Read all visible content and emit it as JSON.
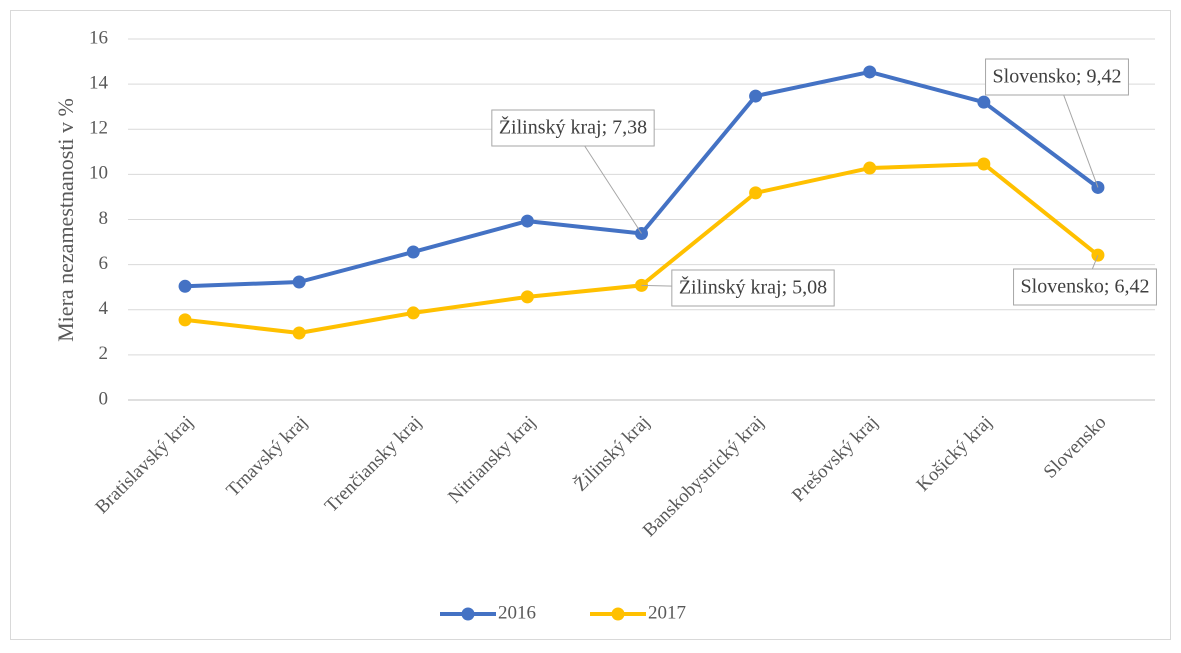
{
  "chart_data": {
    "type": "line",
    "y_axis_label": "Miera nezamestnanosti v %",
    "categories": [
      "Bratislavský kraj",
      "Trnavský kraj",
      "Trenčiansky kraj",
      "Nitriansky kraj",
      "Žilinský kraj",
      "Banskobystrický kraj",
      "Prešovský kraj",
      "Košický kraj",
      "Slovensko"
    ],
    "series": [
      {
        "name": "2016",
        "color": "#4472c4",
        "values": [
          5.04,
          5.23,
          6.56,
          7.93,
          7.38,
          13.47,
          14.54,
          13.2,
          9.42
        ],
        "value_labels": [
          null,
          null,
          null,
          null,
          "Žilinský kraj; 7,38",
          null,
          null,
          null,
          "Slovensko; 9,42"
        ]
      },
      {
        "name": "2017",
        "color": "#ffc000",
        "values": [
          3.55,
          2.97,
          3.86,
          4.57,
          5.08,
          9.18,
          10.28,
          10.46,
          6.42
        ],
        "value_labels": [
          null,
          null,
          null,
          null,
          "Žilinský kraj; 5,08",
          null,
          null,
          null,
          "Slovensko; 6,42"
        ]
      }
    ],
    "ylim": [
      0,
      16
    ],
    "yticks": [
      0,
      2,
      4,
      6,
      8,
      10,
      12,
      14,
      16
    ],
    "grid": true,
    "legend": "bottom"
  }
}
